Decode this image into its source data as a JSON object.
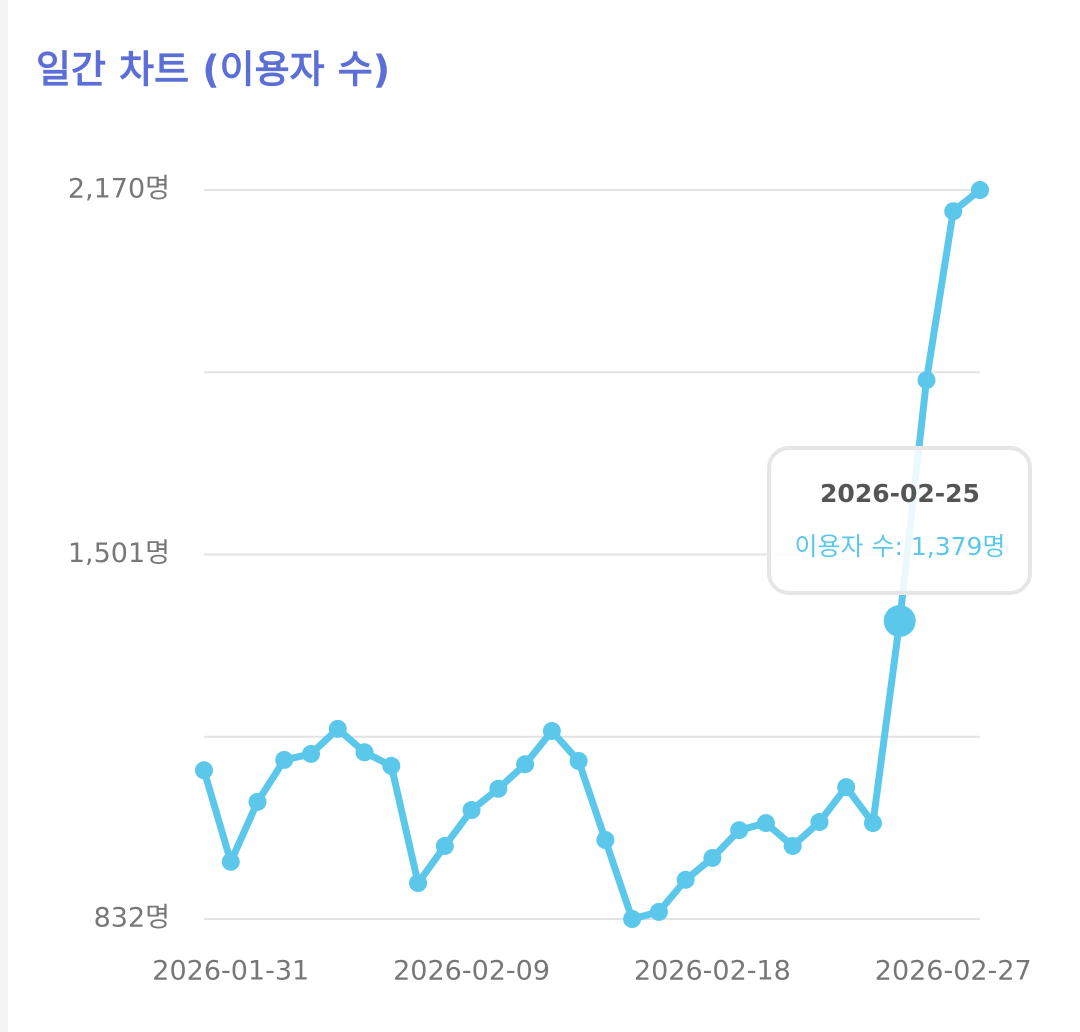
{
  "chart_data": {
    "type": "line",
    "title": "일간 차트 (이용자 수)",
    "categories": [
      null,
      "2026-01-31",
      null,
      null,
      null,
      null,
      null,
      null,
      null,
      null,
      "2026-02-09",
      null,
      null,
      null,
      null,
      null,
      null,
      null,
      null,
      "2026-02-18",
      null,
      null,
      null,
      null,
      null,
      null,
      null,
      null,
      "2026-02-27",
      null
    ],
    "series": [
      {
        "name": "이용자 수",
        "color": "#5bc8eb",
        "values": [
          1105,
          937,
          1047,
          1124,
          1135,
          1181,
          1138,
          1113,
          898,
          966,
          1032,
          1071,
          1116,
          1177,
          1122,
          977,
          832,
          845,
          904,
          944,
          995,
          1008,
          966,
          1010,
          1074,
          1008,
          1379,
          1821,
          2131,
          2170
        ]
      }
    ],
    "ylim": [
      832,
      2170
    ],
    "yticks": [
      {
        "value": 832,
        "label": "832명"
      },
      {
        "value": 1501,
        "label": "1,501명"
      },
      {
        "value": 2170,
        "label": "2,170명"
      }
    ],
    "grid": true,
    "tooltip": {
      "index": 26,
      "date": "2026-02-25",
      "label": "이용자 수: 1,379명"
    }
  }
}
